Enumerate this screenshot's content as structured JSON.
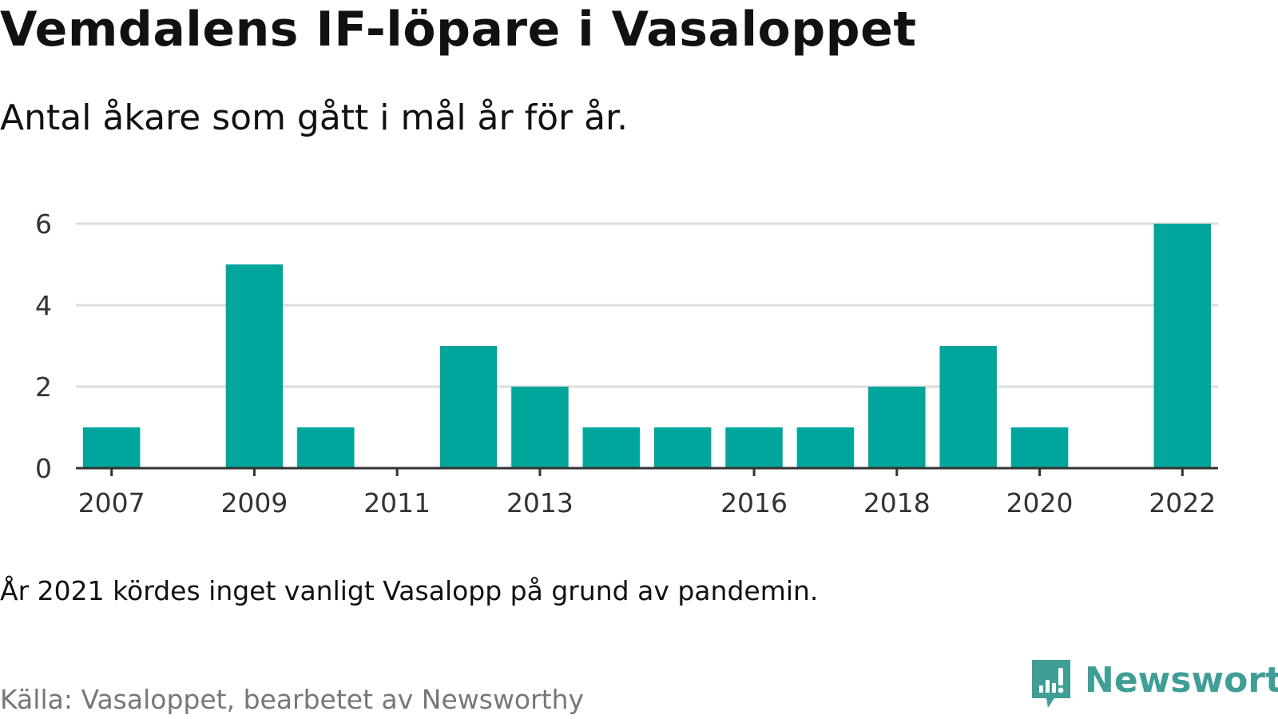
{
  "chart_data": {
    "type": "bar",
    "title": "Vemdalens IF-löpare i Vasaloppet",
    "subtitle": "Antal åkare som gått i mål år för år.",
    "x": [
      2007,
      2008,
      2009,
      2010,
      2011,
      2012,
      2013,
      2014,
      2015,
      2016,
      2017,
      2018,
      2019,
      2020,
      2021,
      2022
    ],
    "values": [
      1,
      0,
      5,
      1,
      0,
      3,
      2,
      1,
      1,
      1,
      1,
      2,
      3,
      1,
      0,
      6
    ],
    "xticks": [
      2007,
      2009,
      2011,
      2013,
      2016,
      2018,
      2020,
      2022
    ],
    "yticks": [
      0,
      2,
      4,
      6
    ],
    "ylim": [
      0,
      6
    ],
    "grid": true,
    "bar_color": "#00a59b"
  },
  "note": "År 2021 kördes inget vanligt Vasalopp på grund av pandemin.",
  "source": "Källa: Vasaloppet, bearbetet av Newsworthy",
  "brand": {
    "name": "Newsworthy",
    "icon": "newsworthy-logo-icon",
    "color": "#3f9e96"
  }
}
